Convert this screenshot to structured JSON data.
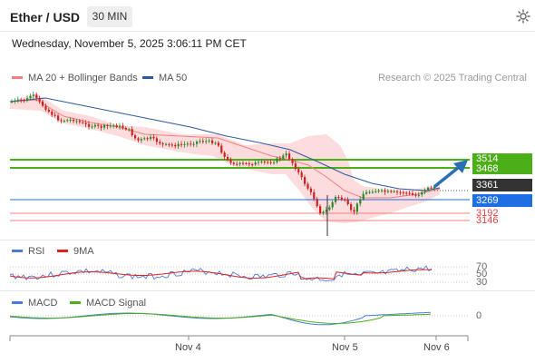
{
  "header": {
    "title": "Ether / USD",
    "timeframe": "30 MIN",
    "settings_icon": "gear-icon"
  },
  "datetime": "Wednesday, November 5, 2025 3:06:11 PM CET",
  "main_chart": {
    "legend": [
      {
        "label": "MA 20 + Bollinger Bands",
        "color": "#f08080"
      },
      {
        "label": "MA 50",
        "color": "#2c5aa0"
      }
    ],
    "credit": "Research © 2025 Trading Central",
    "levels": [
      {
        "value": "3514",
        "color": "#4caf17",
        "text_color": "#ffffff"
      },
      {
        "value": "3468",
        "color": "#4caf17",
        "text_color": "#ffffff"
      },
      {
        "value": "3361",
        "color": "#333333",
        "text_color": "#ffffff"
      },
      {
        "value": "3269",
        "color": "#1e6ee6",
        "text_color": "#ffffff"
      },
      {
        "value": "3192",
        "color": "#ffffff",
        "text_color": "#e04040"
      },
      {
        "value": "3146",
        "color": "#ffffff",
        "text_color": "#e04040"
      }
    ]
  },
  "rsi_panel": {
    "legend": [
      {
        "label": "RSI",
        "color": "#4a7bd8"
      },
      {
        "label": "9MA",
        "color": "#dd2222"
      }
    ],
    "ticks": [
      "70",
      "50",
      "30"
    ]
  },
  "macd_panel": {
    "legend": [
      {
        "label": "MACD",
        "color": "#4a7bd8"
      },
      {
        "label": "MACD Signal",
        "color": "#4caf17"
      }
    ],
    "ticks": [
      "0"
    ]
  },
  "x_axis": {
    "labels": [
      "Nov 4",
      "Nov 5",
      "Nov 6"
    ]
  },
  "colors": {
    "bull": "#2a8a2a",
    "bear": "#cc2222",
    "band_fill": "#fbd6d6",
    "arrow": "#2a6fb5"
  }
}
